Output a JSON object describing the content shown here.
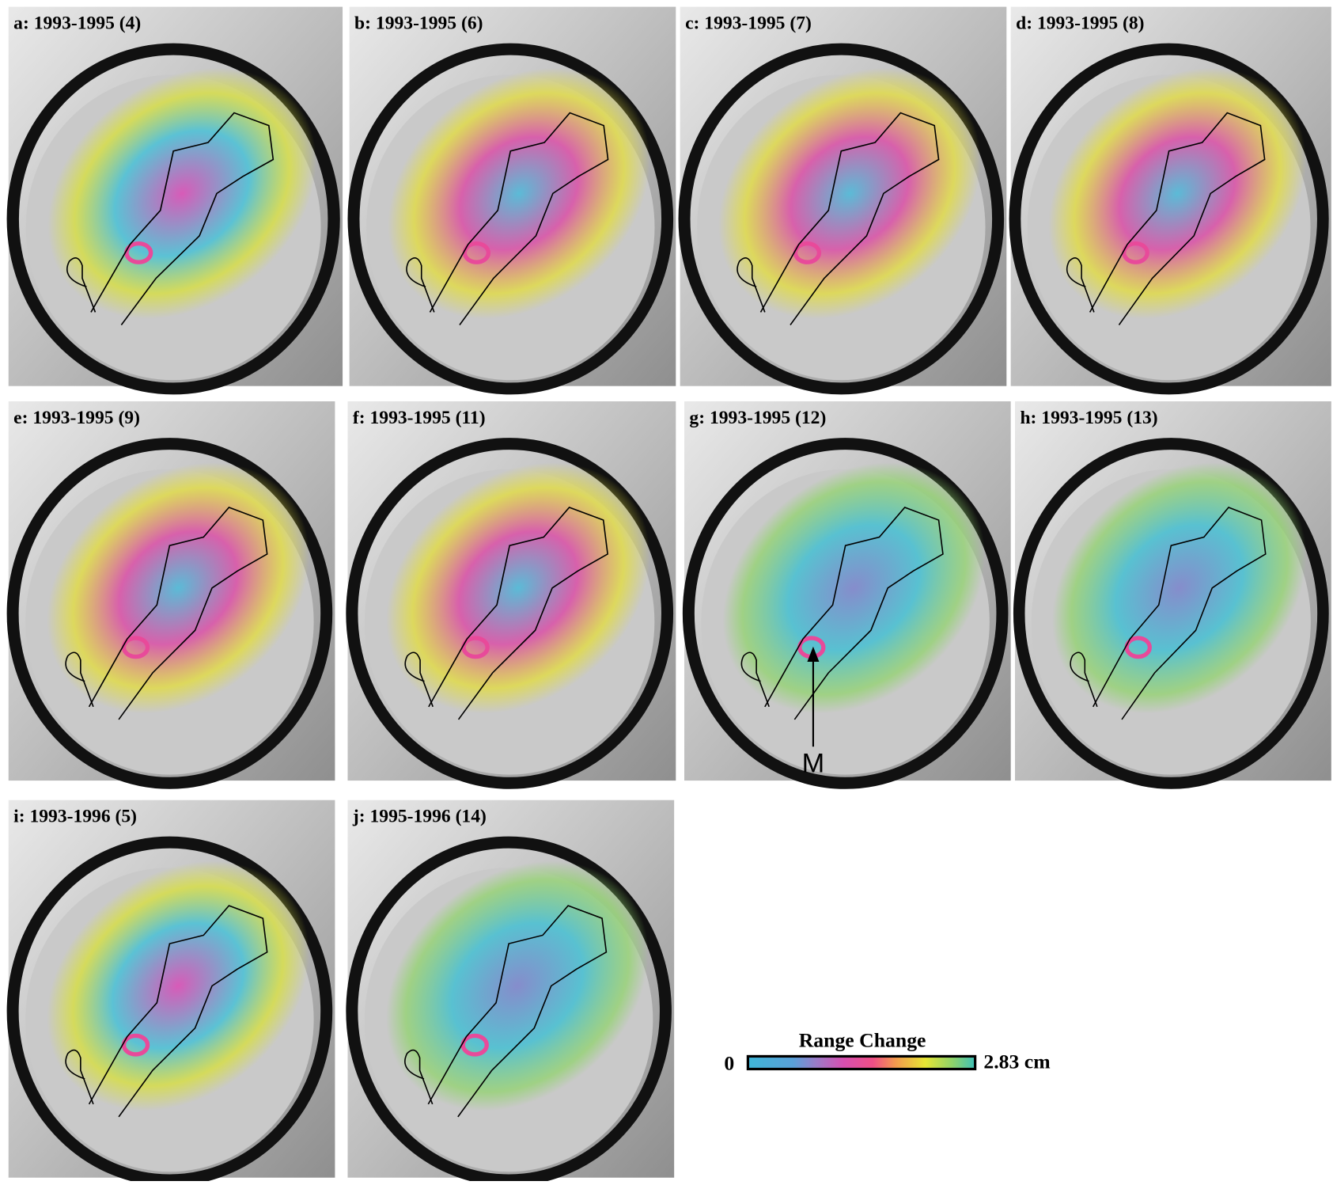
{
  "panels": [
    {
      "label": "a: 1993-1995 (4)"
    },
    {
      "label": "b: 1993-1995 (6)"
    },
    {
      "label": "c: 1993-1995 (7)"
    },
    {
      "label": "d: 1993-1995 (8)"
    },
    {
      "label": "e: 1993-1995 (9)"
    },
    {
      "label": "f: 1993-1995 (11)"
    },
    {
      "label": "g: 1993-1995 (12)"
    },
    {
      "label": "h: 1993-1995 (13)"
    },
    {
      "label": "i: 1993-1996 (5)"
    },
    {
      "label": "j: 1995-1996 (14)"
    }
  ],
  "annotation": "M",
  "colorbar": {
    "title": "Range Change",
    "min_label": "0",
    "max_label": "2.83 cm"
  }
}
